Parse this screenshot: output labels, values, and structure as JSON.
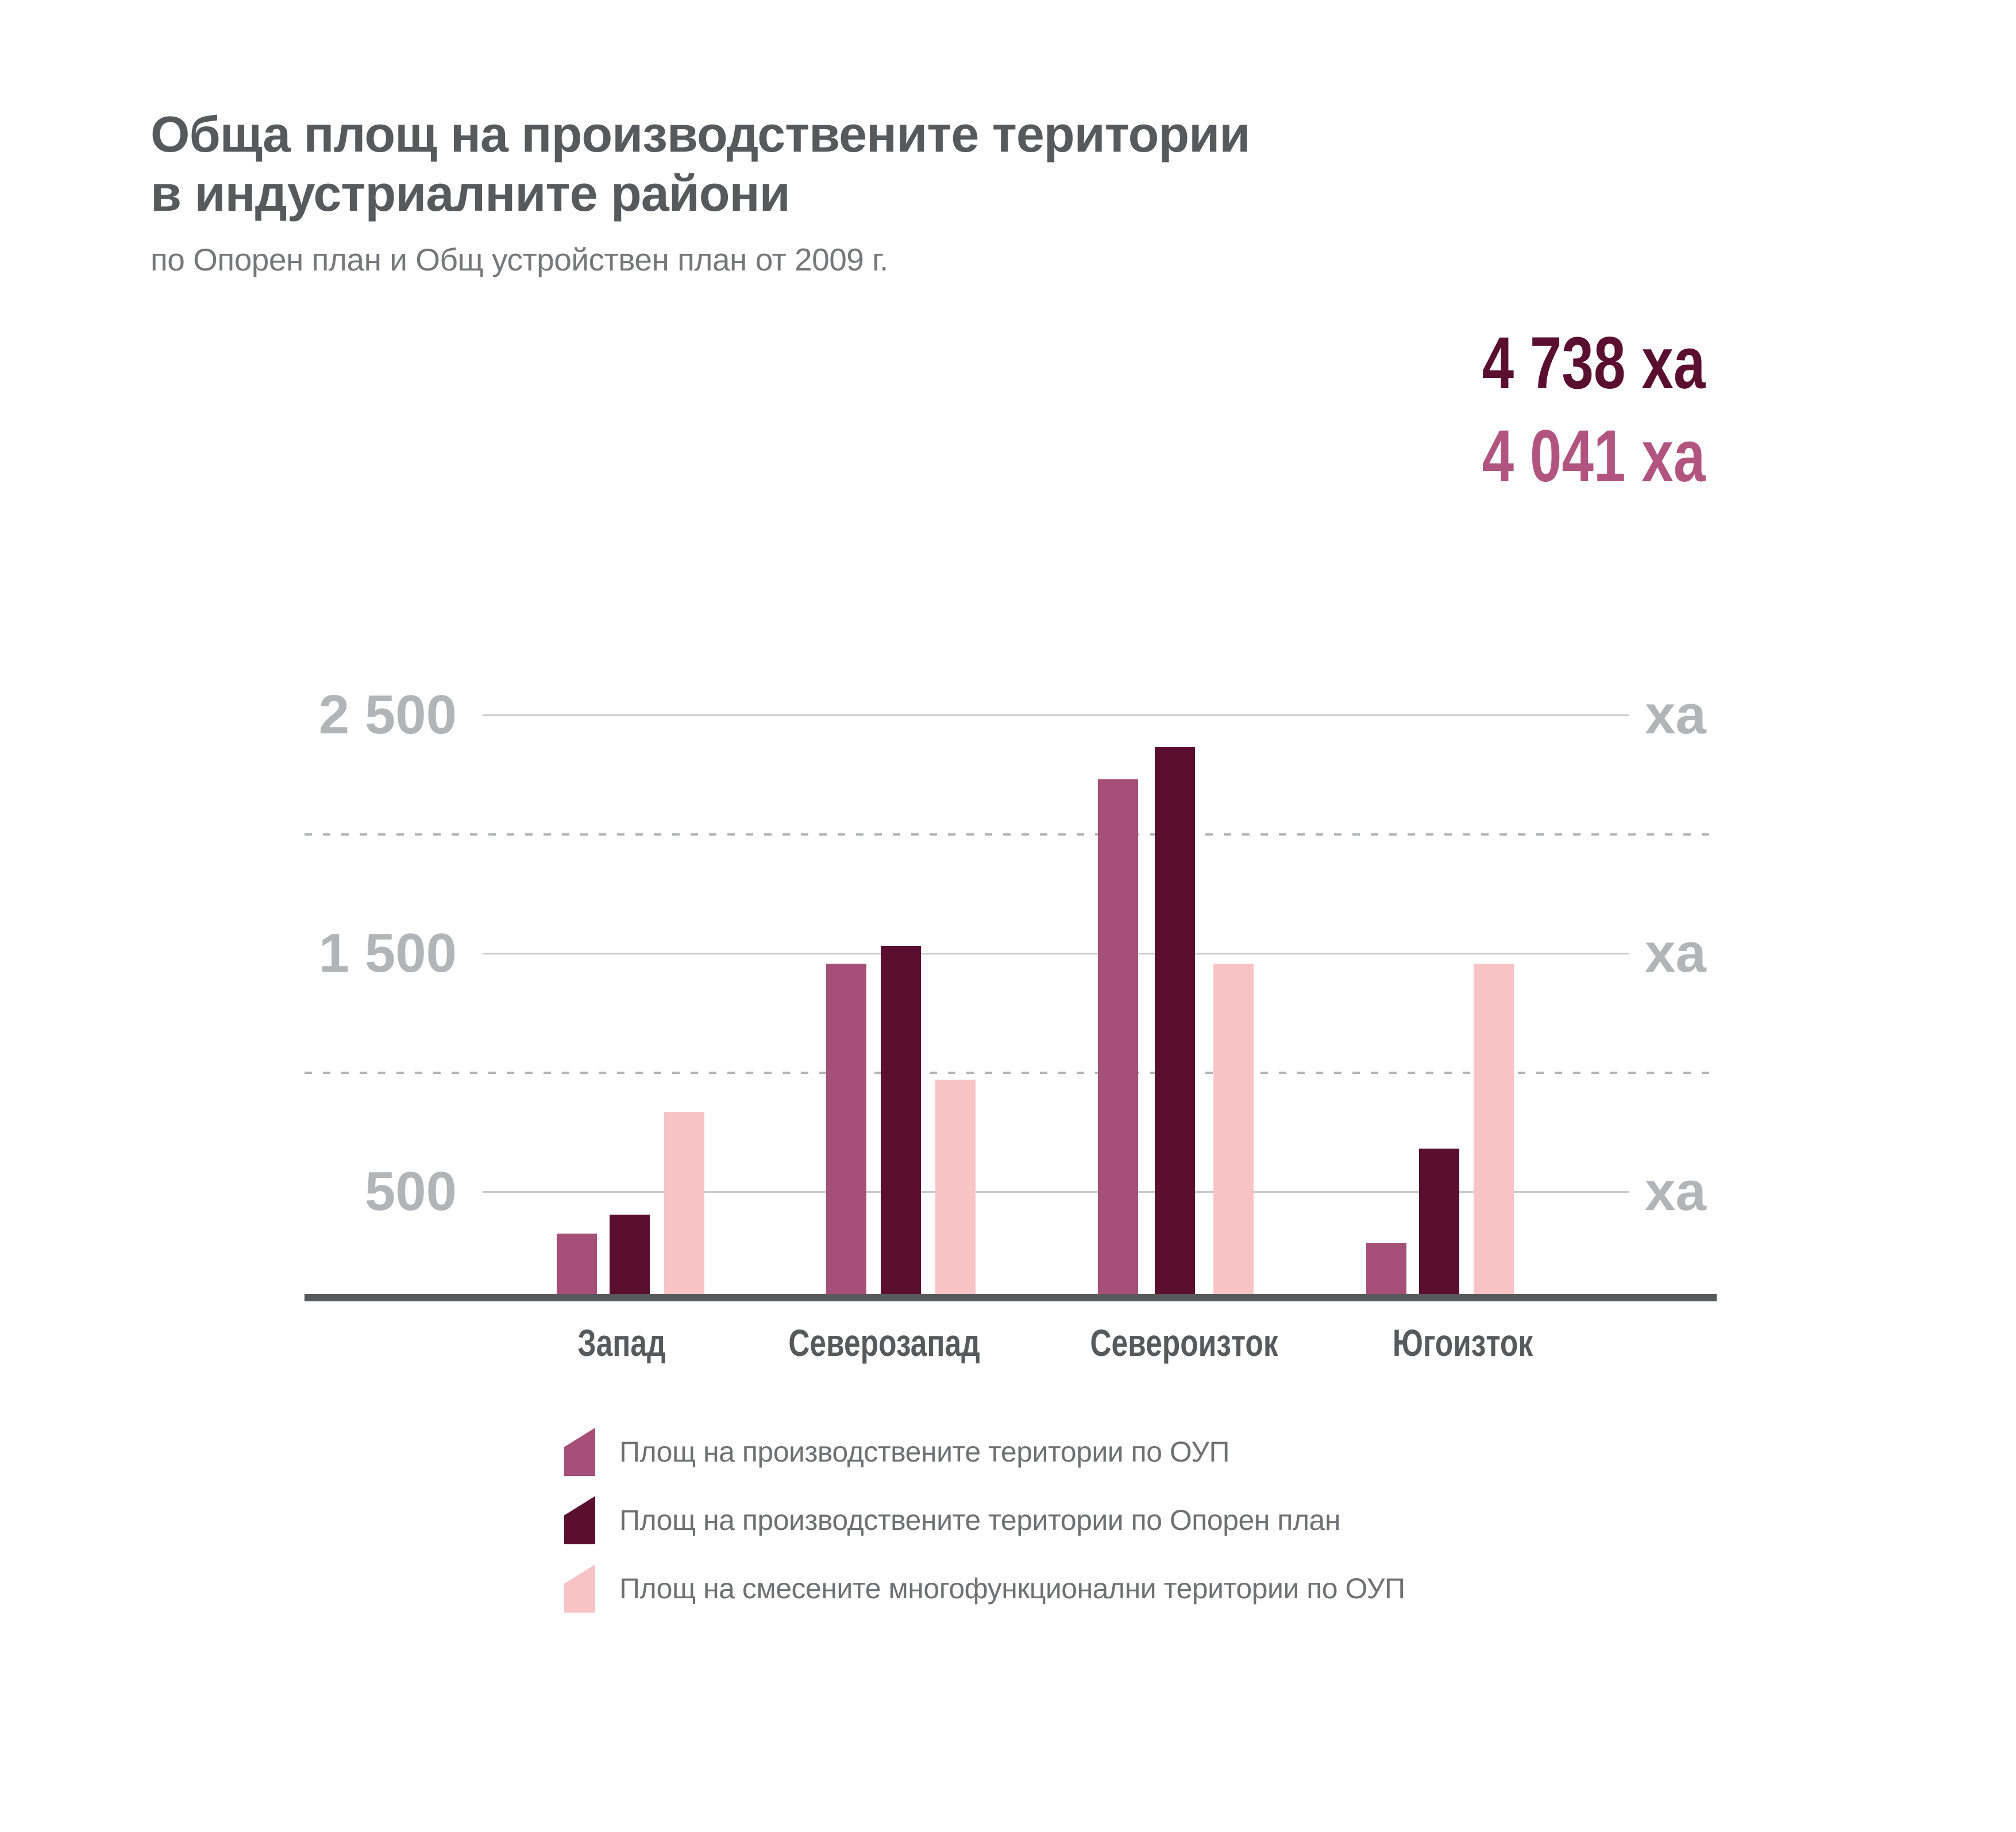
{
  "header": {
    "title_line1": "Обща площ на производствените територии",
    "title_line2": "в индустриалните райони",
    "subtitle": "по Опорен план и Общ устройствен план от 2009 г."
  },
  "totals": [
    {
      "label": "4 738 ха",
      "color": "#5a0e30",
      "refers_to": "Площ на производствените територии по Опорен план"
    },
    {
      "label": "4 041 ха",
      "color": "#b25480",
      "refers_to": "Площ на производствените територии по ОУП"
    }
  ],
  "chart_data": {
    "type": "bar",
    "unit": "ха",
    "categories": [
      "Запад",
      "Северозапад",
      "Североизток",
      "Югоизток"
    ],
    "series": [
      {
        "name": "Площ на производствените територии по ОУП",
        "color": "#a64f78",
        "values": [
          255,
          1395,
          2175,
          215
        ],
        "total": 4041
      },
      {
        "name": "Площ на производствените територии по Опорен план",
        "color": "#5a0e30",
        "values": [
          335,
          1470,
          2310,
          615
        ],
        "total": 4738
      },
      {
        "name": "Площ на смесените многофункционални територии по ОУП",
        "color": "#f8c3c5",
        "values": [
          770,
          905,
          1395,
          1395
        ]
      }
    ],
    "y_axis": {
      "tick_labels": [
        "2 500",
        "1 500",
        "500"
      ],
      "tick_values": [
        2500,
        1500,
        500
      ],
      "dotted_gridline_values": [
        2000,
        1000
      ],
      "unit_label": "ха",
      "ylim": [
        0,
        2600
      ]
    },
    "grid": "horizontal",
    "legend_position": "bottom"
  }
}
